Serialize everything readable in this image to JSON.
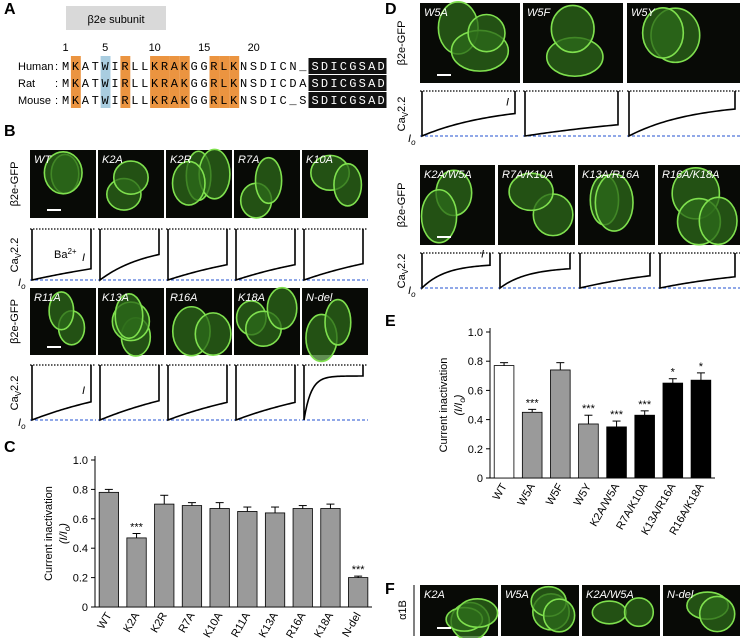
{
  "panel_a": {
    "label": "A",
    "title": "β2e subunit",
    "positions": [
      1,
      5,
      10,
      15,
      20
    ],
    "separator": ":",
    "rows": [
      {
        "species": "Human",
        "sequence": "MKATWIRLLKRAKGGRLKNSDICN_",
        "tail": "SDICGSAD"
      },
      {
        "species": "Rat",
        "sequence": "MKATWIRLLKRAKGGRLKNSDICDA",
        "tail": "SDICGSAD"
      },
      {
        "species": "Mouse",
        "sequence": "MKATWIRLLKRAKGGRLKNSDIC_S",
        "tail": "SDICGSAD"
      }
    ]
  },
  "panel_b": {
    "label": "B",
    "image_label": "β2e-GFP",
    "current_label": [
      "Ca",
      "V",
      "2.2"
    ],
    "ion": [
      "Ba",
      "2+"
    ],
    "late_current": "I",
    "peak_current": [
      "I",
      "o"
    ],
    "tiles": [
      "WT",
      "K2A",
      "K2R",
      "R7A",
      "K10A",
      "R11A",
      "K13A",
      "R16A",
      "K18A",
      "N-del"
    ]
  },
  "panel_d": {
    "label": "D",
    "image_label": "β2e-GFP",
    "current_label": [
      "Ca",
      "V",
      "2.2"
    ],
    "late_current": "I",
    "peak_current": [
      "I",
      "o"
    ],
    "tiles": [
      "W5A",
      "W5F",
      "W5Y",
      "K2A/W5A",
      "R7A/K10A",
      "K13A/R16A",
      "R16A/K18A"
    ]
  },
  "panel_f": {
    "label": "F",
    "image_label": "α1B",
    "tiles": [
      "K2A",
      "W5A",
      "K2A/W5A",
      "N-del"
    ]
  },
  "chart_data": [
    {
      "type": "bar",
      "label": "C",
      "y_label": "Current inactivation",
      "y_label_2": [
        "(I/I",
        "o",
        ")"
      ],
      "categories": [
        "WT",
        "K2A",
        "K2R",
        "R7A",
        "K10A",
        "R11A",
        "K13A",
        "R16A",
        "K18A",
        "N-del"
      ],
      "values": [
        0.78,
        0.47,
        0.7,
        0.69,
        0.67,
        0.65,
        0.64,
        0.67,
        0.67,
        0.2
      ],
      "errors": [
        0.02,
        0.03,
        0.06,
        0.02,
        0.04,
        0.03,
        0.04,
        0.02,
        0.03,
        0.01
      ],
      "significance": [
        null,
        "***",
        null,
        null,
        null,
        null,
        null,
        null,
        null,
        "***"
      ],
      "color": "#9a9a9a",
      "ylim": [
        0,
        1
      ],
      "yticks": [
        0,
        0.2,
        0.4,
        0.6,
        0.8,
        {
          "value": 1,
          "label": "1.0"
        }
      ]
    },
    {
      "type": "bar",
      "label": "E",
      "y_label": "Current inactivation",
      "y_label_2": [
        "(I/I",
        "o",
        ")"
      ],
      "categories": [
        "WT",
        "W5A",
        "W5F",
        "W5Y",
        "K2A/W5A",
        "R7A/K10A",
        "K13A/R16A",
        "R16A/K18A"
      ],
      "values": [
        0.77,
        0.45,
        0.74,
        0.37,
        0.35,
        0.43,
        0.65,
        0.67
      ],
      "errors": [
        0.02,
        0.02,
        0.05,
        0.06,
        0.04,
        0.03,
        0.03,
        0.05
      ],
      "significance": [
        null,
        "***",
        null,
        "***",
        "***",
        "***",
        "*",
        "*"
      ],
      "colors": [
        "#ffffff",
        "#9a9a9a",
        "#9a9a9a",
        "#9a9a9a",
        "#000000",
        "#000000",
        "#000000",
        "#000000"
      ],
      "ylim": [
        0,
        1
      ],
      "yticks": [
        0,
        0.2,
        0.4,
        0.6,
        0.8,
        {
          "value": 1,
          "label": "1.0"
        }
      ]
    }
  ]
}
